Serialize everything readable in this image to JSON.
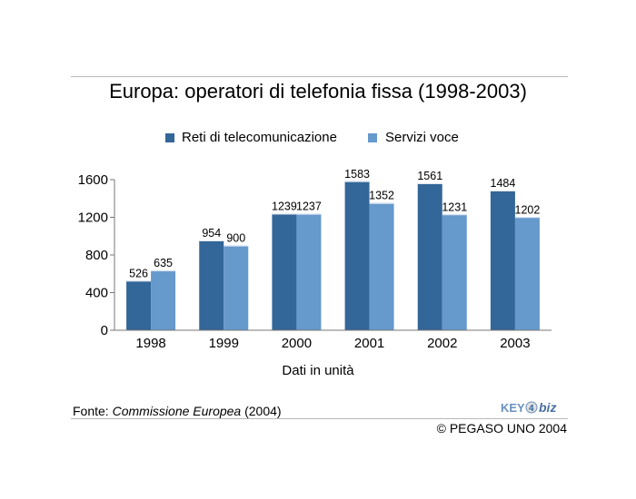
{
  "title": "Europa: operatori di telefonia fissa (1998-2003)",
  "legend": {
    "items": [
      {
        "label": "Reti di telecomunicazione",
        "color": "#336699"
      },
      {
        "label": "Servizi voce",
        "color": "#6699cc"
      }
    ]
  },
  "chart_data": {
    "type": "bar",
    "title": "Europa: operatori di telefonia fissa (1998-2003)",
    "categories": [
      "1998",
      "1999",
      "2000",
      "2001",
      "2002",
      "2003"
    ],
    "series": [
      {
        "name": "Reti di telecomunicazione",
        "values": [
          526,
          954,
          1239,
          1583,
          1561,
          1484
        ],
        "color": "#336699"
      },
      {
        "name": "Servizi voce",
        "values": [
          635,
          900,
          1237,
          1352,
          1231,
          1202
        ],
        "color": "#6699cc"
      }
    ],
    "ylim": [
      0,
      1600
    ],
    "yticks": [
      "0",
      "400",
      "800",
      "1200",
      "1600"
    ],
    "xlabel": "Dati in unità",
    "ylabel": "",
    "grid": false,
    "legend_position": "top"
  },
  "footer": {
    "source_prefix": "Fonte: ",
    "source_name": "Commissione Europea",
    "source_suffix": " (2004)",
    "logo_text": "KEY4biz",
    "copyright": "© PEGASO UNO 2004"
  }
}
